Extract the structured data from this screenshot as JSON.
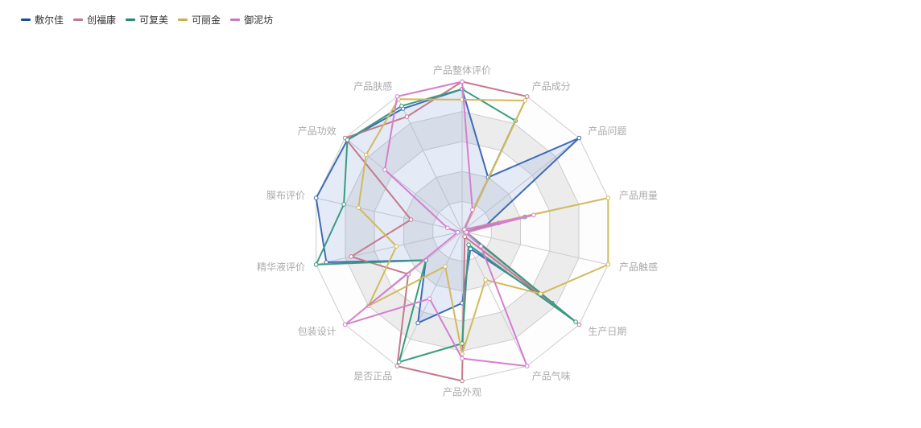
{
  "chart_data": {
    "type": "radar",
    "legend_position": "top-left",
    "indicators": [
      "产品整体评价",
      "产品成分",
      "产品问题",
      "产品用量",
      "产品触感",
      "生产日期",
      "产品气味",
      "产品外观",
      "是否正品",
      "包装设计",
      "精华液评价",
      "膜布评价",
      "产品功效",
      "产品肤感"
    ],
    "max": 100,
    "split_number": 5,
    "series": [
      {
        "name": "敷尔佳",
        "color": "#3f6bb5",
        "legend_color": "#1f4e96",
        "filled": true,
        "values": [
          95,
          40,
          100,
          16,
          3,
          77,
          13,
          48,
          68,
          31,
          93,
          100,
          98,
          91
        ]
      },
      {
        "name": "创福康",
        "color": "#c47a8c",
        "legend_color": "#c0788a",
        "filled": false,
        "values": [
          100,
          100,
          2,
          25,
          2,
          100,
          4,
          100,
          100,
          46,
          76,
          35,
          100,
          85
        ]
      },
      {
        "name": "可复美",
        "color": "#3a9a80",
        "legend_color": "#248a72",
        "filled": false,
        "values": [
          95,
          82,
          2,
          43,
          3,
          97,
          10,
          75,
          97,
          31,
          100,
          81,
          98,
          93
        ]
      },
      {
        "name": "可丽金",
        "color": "#d2ba5c",
        "legend_color": "#c8b24f",
        "filled": false,
        "values": [
          88,
          97,
          2,
          100,
          100,
          67,
          36,
          82,
          26,
          80,
          45,
          71,
          82,
          98
        ]
      },
      {
        "name": "御泥坊",
        "color": "#d57fcf",
        "legend_color": "#c27bc5",
        "filled": false,
        "values": [
          100,
          16,
          2,
          49,
          3,
          16,
          100,
          85,
          50,
          100,
          3,
          10,
          66,
          100
        ]
      }
    ]
  }
}
